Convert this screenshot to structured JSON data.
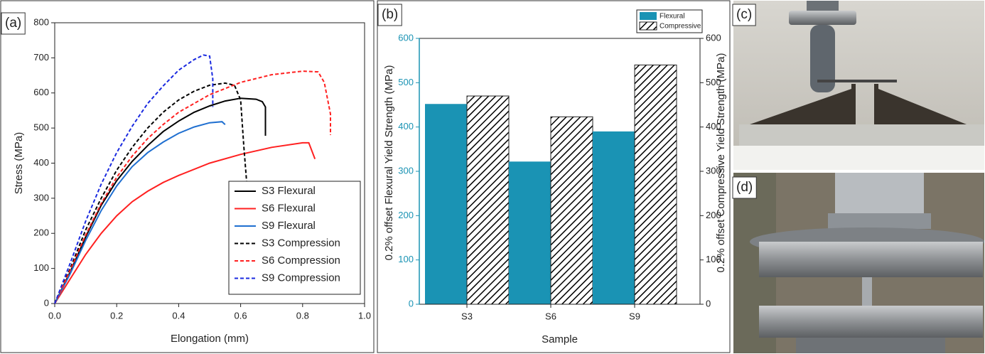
{
  "chart_data": [
    {
      "type": "line",
      "panel_label": "(a)",
      "x_label": "Elongation (mm)",
      "y_label": "Stress (MPa)",
      "xlim": [
        0,
        1
      ],
      "ylim": [
        0,
        800
      ],
      "xticks": [
        {
          "value": 0,
          "label": "0.0"
        },
        0.2,
        0.4,
        0.6,
        0.8,
        {
          "value": 1,
          "label": "1.0"
        }
      ],
      "yticks": [
        0,
        100,
        200,
        300,
        400,
        500,
        600,
        700,
        800
      ],
      "legend": "lower right",
      "series": [
        {
          "name": "S3 Flexural",
          "color": "#000000",
          "dash": false,
          "x": [
            0,
            0.05,
            0.1,
            0.15,
            0.2,
            0.25,
            0.3,
            0.35,
            0.4,
            0.45,
            0.5,
            0.55,
            0.6,
            0.65,
            0.67,
            0.68,
            0.68
          ],
          "values": [
            0,
            90,
            190,
            280,
            350,
            405,
            450,
            490,
            520,
            545,
            563,
            577,
            585,
            582,
            575,
            560,
            478
          ]
        },
        {
          "name": "S6 Flexural",
          "color": "#ff2020",
          "dash": false,
          "x": [
            0,
            0.05,
            0.1,
            0.15,
            0.2,
            0.25,
            0.3,
            0.35,
            0.4,
            0.5,
            0.6,
            0.7,
            0.8,
            0.82,
            0.84
          ],
          "values": [
            0,
            70,
            140,
            200,
            250,
            290,
            320,
            345,
            365,
            400,
            425,
            445,
            458,
            458,
            412
          ]
        },
        {
          "name": "S9 Flexural",
          "color": "#1f6fd0",
          "dash": false,
          "x": [
            0,
            0.05,
            0.1,
            0.15,
            0.2,
            0.25,
            0.3,
            0.35,
            0.4,
            0.45,
            0.5,
            0.54,
            0.55
          ],
          "values": [
            0,
            85,
            180,
            265,
            335,
            390,
            430,
            460,
            485,
            503,
            515,
            518,
            510
          ]
        },
        {
          "name": "S3 Compression",
          "color": "#000000",
          "dash": true,
          "x": [
            0,
            0.05,
            0.1,
            0.15,
            0.2,
            0.25,
            0.3,
            0.35,
            0.4,
            0.45,
            0.5,
            0.55,
            0.58,
            0.6,
            0.61,
            0.62
          ],
          "values": [
            0,
            100,
            210,
            300,
            380,
            445,
            500,
            545,
            580,
            605,
            622,
            628,
            622,
            580,
            450,
            340
          ]
        },
        {
          "name": "S6 Compression",
          "color": "#ff2020",
          "dash": true,
          "x": [
            0,
            0.05,
            0.1,
            0.15,
            0.2,
            0.25,
            0.3,
            0.35,
            0.4,
            0.5,
            0.6,
            0.7,
            0.8,
            0.85,
            0.87,
            0.89,
            0.89
          ],
          "values": [
            0,
            95,
            195,
            285,
            360,
            420,
            470,
            510,
            545,
            595,
            630,
            652,
            662,
            660,
            630,
            540,
            480
          ]
        },
        {
          "name": "S9 Compression",
          "color": "#1a2ae0",
          "dash": true,
          "x": [
            0,
            0.05,
            0.1,
            0.15,
            0.2,
            0.25,
            0.3,
            0.35,
            0.4,
            0.45,
            0.48,
            0.5,
            0.51,
            0.51
          ],
          "values": [
            0,
            115,
            235,
            340,
            430,
            505,
            570,
            620,
            665,
            695,
            708,
            705,
            640,
            560
          ]
        }
      ]
    },
    {
      "type": "bar",
      "panel_label": "(b)",
      "x_label": "Sample",
      "y_label": "0.2% offset Flexural Yield Strength (MPa)",
      "y2_label": "0.2% offset Compressive Yield Strength (MPa)",
      "y_axis_color": "#1a93b4",
      "categories": [
        "S3",
        "S6",
        "S9"
      ],
      "ylim": [
        0,
        600
      ],
      "yticks": [
        0,
        100,
        200,
        300,
        400,
        500,
        600
      ],
      "y2lim": [
        0,
        600
      ],
      "y2ticks": [
        0,
        100,
        200,
        300,
        400,
        500,
        600
      ],
      "legend": "upper right",
      "series": [
        {
          "name": "Flexural",
          "color": "#1a93b4",
          "hatch": false,
          "values": [
            452,
            322,
            390
          ]
        },
        {
          "name": "Compressive",
          "color": "#000000",
          "hatch": true,
          "axis": "y2",
          "values": [
            470,
            423,
            540
          ]
        }
      ]
    }
  ],
  "photos": [
    {
      "label": "(c)"
    },
    {
      "label": "(d)"
    }
  ]
}
